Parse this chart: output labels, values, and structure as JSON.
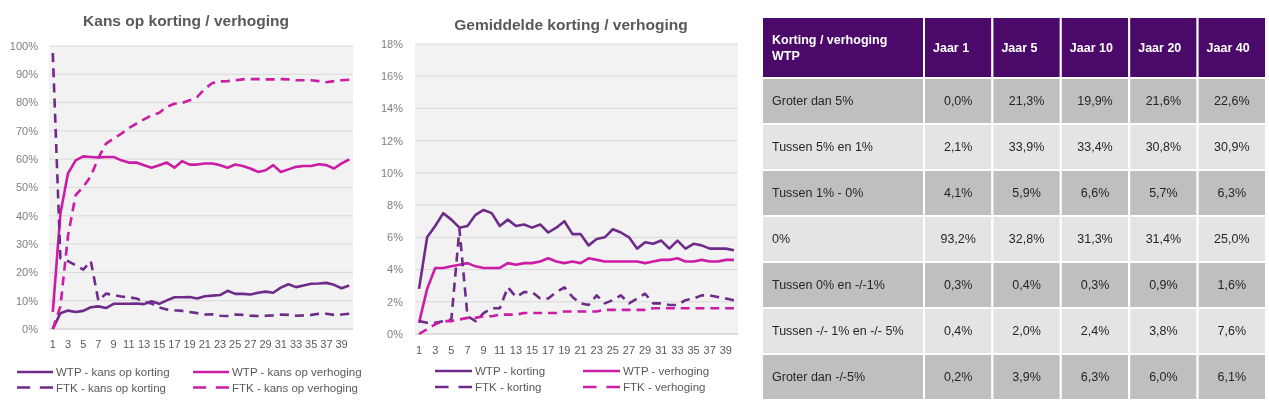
{
  "chart_data": [
    {
      "type": "line",
      "title": "Kans op korting / verhoging",
      "x": [
        1,
        2,
        3,
        4,
        5,
        6,
        7,
        8,
        9,
        10,
        11,
        12,
        13,
        14,
        15,
        16,
        17,
        18,
        19,
        20,
        21,
        22,
        23,
        24,
        25,
        26,
        27,
        28,
        29,
        30,
        31,
        32,
        33,
        34,
        35,
        36,
        37,
        38,
        39,
        40
      ],
      "xlim": [
        0.5,
        40.5
      ],
      "xticks": [
        1,
        3,
        5,
        7,
        9,
        11,
        13,
        15,
        17,
        19,
        21,
        23,
        25,
        27,
        29,
        31,
        33,
        35,
        37,
        39
      ],
      "series": [
        {
          "name": "WTP - kans op korting",
          "color": "#6f2b8a",
          "line_style": "solid",
          "values": [
            0,
            5.6,
            6.5,
            6.0,
            6.4,
            7.7,
            8.0,
            7.4,
            8.9,
            8.9,
            8.9,
            9.0,
            8.8,
            9.8,
            8.9,
            10.1,
            11.2,
            11.2,
            11.3,
            10.8,
            11.6,
            11.8,
            12.0,
            13.5,
            12.4,
            12.4,
            12.2,
            12.8,
            13.2,
            12.8,
            14.6,
            15.8,
            14.8,
            15.4,
            16.0,
            16.1,
            16.3,
            15.6,
            14.4,
            15.4
          ]
        },
        {
          "name": "WTP - kans op verhoging",
          "color": "#cc1ca6",
          "line_style": "solid",
          "values": [
            6,
            40.8,
            55,
            59.6,
            61,
            60.8,
            60.6,
            60.8,
            60.8,
            59.6,
            58.8,
            58.8,
            57.9,
            57,
            57.9,
            58.8,
            57,
            59.3,
            58.1,
            58.1,
            58.5,
            58.5,
            57.9,
            57,
            58.1,
            57.6,
            56.7,
            55.5,
            56.1,
            57.9,
            55.5,
            56.4,
            57.3,
            57.6,
            57.6,
            58.2,
            57.9,
            56.7,
            58.5,
            59.9
          ]
        },
        {
          "name": "FTK - kans op korting",
          "color": "#6f2b8a",
          "line_style": "dashed",
          "values": [
            97.5,
            25,
            24,
            22.5,
            21,
            24,
            10,
            12.5,
            12,
            11.5,
            11.2,
            10.8,
            9.6,
            9.0,
            7.6,
            6.9,
            6.6,
            6.4,
            6.0,
            5.6,
            5.1,
            5.2,
            4.7,
            4.6,
            5.1,
            5.0,
            4.7,
            4.6,
            4.7,
            4.8,
            5.1,
            5.0,
            4.7,
            4.8,
            5.0,
            5.4,
            5.4,
            5.0,
            5.1,
            5.4
          ]
        },
        {
          "name": "FTK - kans op verhoging",
          "color": "#cc1ca6",
          "line_style": "dashed",
          "values": [
            0,
            8,
            33,
            47.3,
            50.2,
            54,
            60.5,
            65.5,
            67.3,
            69,
            71,
            72.6,
            74.1,
            75.5,
            76.4,
            78.5,
            79.6,
            79.9,
            80.8,
            82,
            84.9,
            86.9,
            87.5,
            87.6,
            87.9,
            88.2,
            88.3,
            88.3,
            88.2,
            88.2,
            88.3,
            88.2,
            87.9,
            87.9,
            87.9,
            87.6,
            87.2,
            87.6,
            87.9,
            88.1
          ]
        }
      ],
      "ylim": [
        0,
        100
      ],
      "yticks": [
        {
          "value": 0,
          "label": "0%"
        },
        {
          "value": 10,
          "label": "10%"
        },
        {
          "value": 20,
          "label": "20%"
        },
        {
          "value": 30,
          "label": "30%"
        },
        {
          "value": 40,
          "label": "40%"
        },
        {
          "value": 50,
          "label": "50%"
        },
        {
          "value": 60,
          "label": "60%"
        },
        {
          "value": 70,
          "label": "70%"
        },
        {
          "value": 80,
          "label": "80%"
        },
        {
          "value": 90,
          "label": "90%"
        },
        {
          "value": 100,
          "label": "100%"
        }
      ],
      "grid": "y",
      "legend": "bottom"
    },
    {
      "type": "line",
      "title": "Gemiddelde korting / verhoging",
      "x": [
        1,
        2,
        3,
        4,
        5,
        6,
        7,
        8,
        9,
        10,
        11,
        12,
        13,
        14,
        15,
        16,
        17,
        18,
        19,
        20,
        21,
        22,
        23,
        24,
        25,
        26,
        27,
        28,
        29,
        30,
        31,
        32,
        33,
        34,
        35,
        36,
        37,
        38,
        39,
        40
      ],
      "xlim": [
        0.5,
        40.5
      ],
      "xticks": [
        1,
        3,
        5,
        7,
        9,
        11,
        13,
        15,
        17,
        19,
        21,
        23,
        25,
        27,
        29,
        31,
        33,
        35,
        37,
        39
      ],
      "series": [
        {
          "name": "WTP - korting",
          "color": "#6f2b8a",
          "line_style": "solid",
          "values": [
            2.8,
            6.0,
            6.7,
            7.5,
            7.1,
            6.6,
            6.7,
            7.4,
            7.7,
            7.5,
            6.7,
            7.1,
            6.7,
            6.8,
            6.6,
            6.8,
            6.3,
            6.6,
            7.0,
            6.2,
            6.2,
            5.5,
            5.9,
            6.0,
            6.5,
            6.3,
            6.0,
            5.3,
            5.7,
            5.6,
            5.8,
            5.3,
            5.8,
            5.3,
            5.6,
            5.5,
            5.3,
            5.3,
            5.3,
            5.2
          ]
        },
        {
          "name": "WTP - verhoging",
          "color": "#cc1ca6",
          "line_style": "solid",
          "values": [
            0.7,
            2.8,
            4.1,
            4.1,
            4.2,
            4.3,
            4.4,
            4.2,
            4.1,
            4.1,
            4.1,
            4.4,
            4.3,
            4.4,
            4.4,
            4.5,
            4.7,
            4.5,
            4.4,
            4.5,
            4.4,
            4.7,
            4.6,
            4.5,
            4.5,
            4.5,
            4.5,
            4.5,
            4.4,
            4.5,
            4.6,
            4.6,
            4.7,
            4.5,
            4.5,
            4.6,
            4.5,
            4.5,
            4.6,
            4.6
          ]
        },
        {
          "name": "FTK - korting",
          "color": "#6f2b8a",
          "line_style": "dashed",
          "values": [
            0.8,
            0.7,
            0.7,
            0.8,
            0.9,
            6.5,
            1.1,
            0.8,
            1.3,
            1.6,
            1.6,
            2.9,
            2.3,
            2.6,
            2.6,
            2.2,
            2.2,
            2.6,
            2.9,
            2.3,
            1.9,
            1.8,
            2.4,
            1.9,
            2.1,
            2.4,
            1.9,
            2.2,
            2.5,
            1.9,
            1.9,
            1.8,
            1.8,
            2.1,
            2.2,
            2.4,
            2.4,
            2.3,
            2.2,
            2.1
          ]
        },
        {
          "name": "FTK - verhoging",
          "color": "#cc1ca6",
          "line_style": "dashed",
          "values": [
            0,
            0.3,
            0.6,
            0.8,
            0.8,
            0.9,
            1.0,
            1.0,
            1.1,
            1.1,
            1.2,
            1.2,
            1.2,
            1.3,
            1.3,
            1.3,
            1.3,
            1.3,
            1.4,
            1.4,
            1.4,
            1.4,
            1.4,
            1.5,
            1.5,
            1.5,
            1.5,
            1.5,
            1.5,
            1.6,
            1.6,
            1.6,
            1.6,
            1.6,
            1.6,
            1.6,
            1.6,
            1.6,
            1.6,
            1.6
          ]
        }
      ],
      "ylim": [
        0,
        18
      ],
      "yticks": [
        {
          "value": 0,
          "label": "0%"
        },
        {
          "value": 2,
          "label": "2%"
        },
        {
          "value": 4,
          "label": "4%"
        },
        {
          "value": 6,
          "label": "6%"
        },
        {
          "value": 8,
          "label": "8%"
        },
        {
          "value": 10,
          "label": "10%"
        },
        {
          "value": 12,
          "label": "12%"
        },
        {
          "value": 14,
          "label": "14%"
        },
        {
          "value": 16,
          "label": "16%"
        },
        {
          "value": 18,
          "label": "18%"
        }
      ],
      "grid": "y",
      "legend": "bottom"
    },
    {
      "type": "other",
      "title": "Korting / verhoging WTP",
      "categories": [
        "Jaar 1",
        "Jaar 5",
        "Jaar 10",
        "Jaar 20",
        "Jaar 40"
      ],
      "y_categories": [
        "Groter dan 5%",
        "Tussen 5% en 1%",
        "Tussen 1% - 0%",
        "0%",
        "Tussen 0% en -/-1%",
        "Tussen -/- 1% en -/- 5%",
        "Groter dan -/-5%"
      ],
      "cell_labels": [
        [
          "0,0%",
          "21,3%",
          "19,9%",
          "21,6%",
          "22,6%"
        ],
        [
          "2,1%",
          "33,9%",
          "33,4%",
          "30,8%",
          "30,9%"
        ],
        [
          "4,1%",
          "5,9%",
          "6,6%",
          "5,7%",
          "6,3%"
        ],
        [
          "93,2%",
          "32,8%",
          "31,3%",
          "31,4%",
          "25,0%"
        ],
        [
          "0,3%",
          "0,4%",
          "0,3%",
          "0,9%",
          "1,6%"
        ],
        [
          "0,4%",
          "2,0%",
          "2,4%",
          "3,8%",
          "7,6%"
        ],
        [
          "0,2%",
          "3,9%",
          "6,3%",
          "6,0%",
          "6,1%"
        ]
      ]
    }
  ]
}
